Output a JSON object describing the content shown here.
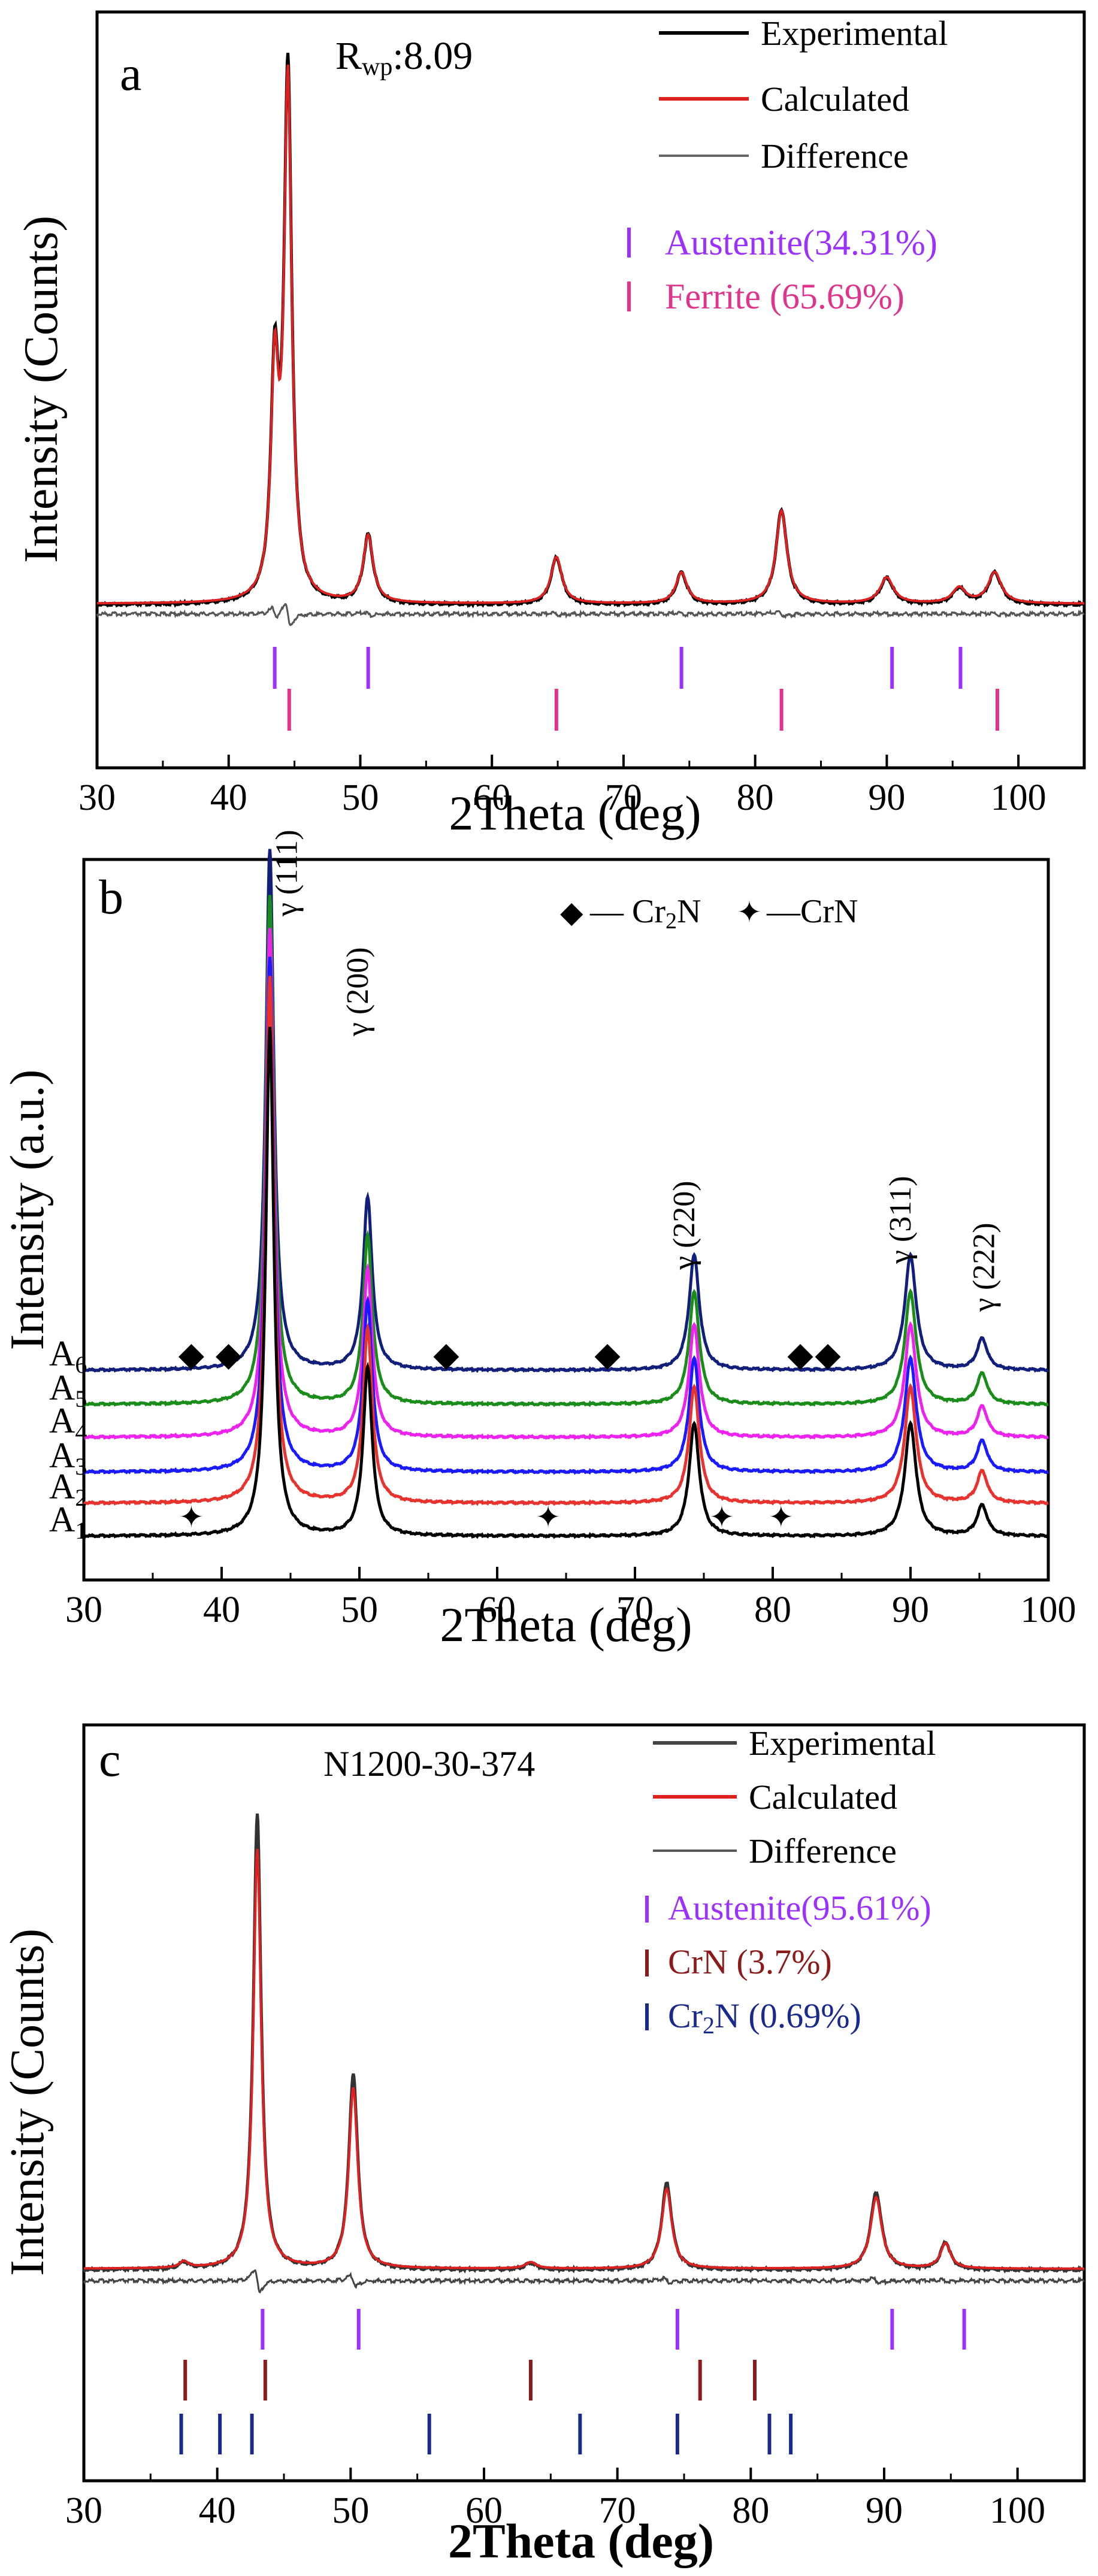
{
  "chart_data": [
    {
      "panel": "a",
      "type": "line",
      "annotation": "Rwp:8.09",
      "annotation_main": "R",
      "annotation_sub": "wp",
      "annotation_value": ":8.09",
      "xlabel": "2Theta (deg)",
      "ylabel": "Intensity (Counts)",
      "xlim": [
        30,
        105
      ],
      "xticks": [
        30,
        40,
        50,
        60,
        70,
        80,
        90,
        100
      ],
      "legend": [
        "Experimental",
        "Calculated",
        "Difference"
      ],
      "peaks": [
        {
          "x": 43.5,
          "h": 0.42,
          "w": 0.35
        },
        {
          "x": 44.5,
          "h": 1.0,
          "w": 0.35
        },
        {
          "x": 50.6,
          "h": 0.13,
          "w": 0.45
        },
        {
          "x": 64.9,
          "h": 0.09,
          "w": 0.5
        },
        {
          "x": 74.4,
          "h": 0.06,
          "w": 0.5
        },
        {
          "x": 82.0,
          "h": 0.18,
          "w": 0.5
        },
        {
          "x": 90.0,
          "h": 0.05,
          "w": 0.6
        },
        {
          "x": 95.5,
          "h": 0.03,
          "w": 0.6
        },
        {
          "x": 98.2,
          "h": 0.06,
          "w": 0.6
        }
      ],
      "phases": [
        {
          "label": "Austenite(34.31%)",
          "color": "#9b30ff",
          "positions": [
            43.5,
            50.6,
            74.4,
            90.4,
            95.6
          ]
        },
        {
          "label": "Ferrite (65.69%)",
          "color": "#e0338c",
          "positions": [
            44.6,
            64.9,
            82.0,
            98.4
          ]
        }
      ]
    },
    {
      "panel": "b",
      "type": "line",
      "xlabel": "2Theta (deg)",
      "ylabel": "Intensity (a.u.)",
      "xlim": [
        30,
        100
      ],
      "xticks": [
        30,
        40,
        50,
        60,
        70,
        80,
        90,
        100
      ],
      "legend": [
        {
          "symbol": "◆",
          "label_main": "— Cr",
          "label_sub": "2",
          "label_tail": "N"
        },
        {
          "symbol": "✦",
          "label_main": "—CrN",
          "label_sub": "",
          "label_tail": ""
        }
      ],
      "series": [
        {
          "name": "A1",
          "base": "A",
          "sub": "1",
          "color": "#000000"
        },
        {
          "name": "A2",
          "base": "A",
          "sub": "2",
          "color": "#e8322d"
        },
        {
          "name": "A3",
          "base": "A",
          "sub": "3",
          "color": "#1a1aff"
        },
        {
          "name": "A4",
          "base": "A",
          "sub": "4",
          "color": "#ee22ee"
        },
        {
          "name": "A5",
          "base": "A",
          "sub": "5",
          "color": "#1a8c1a"
        },
        {
          "name": "A6",
          "base": "A",
          "sub": "6",
          "color": "#121f7a"
        }
      ],
      "peaks": [
        {
          "x": 43.5,
          "h": 1.0,
          "w": 0.35
        },
        {
          "x": 50.6,
          "h": 0.33,
          "w": 0.4
        },
        {
          "x": 74.3,
          "h": 0.22,
          "w": 0.45
        },
        {
          "x": 90.0,
          "h": 0.22,
          "w": 0.5
        },
        {
          "x": 95.2,
          "h": 0.06,
          "w": 0.45
        }
      ],
      "peak_labels": [
        {
          "x": 43.5,
          "text": "γ (111)"
        },
        {
          "x": 50.6,
          "text": "γ (200)"
        },
        {
          "x": 74.3,
          "text": "γ (220)"
        },
        {
          "x": 90.0,
          "text": "γ (311)"
        },
        {
          "x": 95.2,
          "text": "γ (222)"
        }
      ],
      "cr2n_markers": [
        37.8,
        40.5,
        56.3,
        68.0,
        82.0,
        84.0
      ],
      "crn_markers": [
        37.8,
        63.7,
        76.3,
        80.6
      ]
    },
    {
      "panel": "c",
      "type": "line",
      "annotation": "N1200-30-374",
      "xlabel": "2Theta (deg)",
      "ylabel": "Intensity (Counts)",
      "xlim": [
        30,
        105
      ],
      "xticks": [
        30,
        40,
        50,
        60,
        70,
        80,
        90,
        100
      ],
      "legend": [
        "Experimental",
        "Calculated",
        "Difference"
      ],
      "peaks": [
        {
          "x": 37.5,
          "h": 0.015,
          "w": 0.4
        },
        {
          "x": 43.0,
          "h": 1.0,
          "w": 0.35
        },
        {
          "x": 50.2,
          "h": 0.43,
          "w": 0.4
        },
        {
          "x": 63.5,
          "h": 0.015,
          "w": 0.5
        },
        {
          "x": 73.7,
          "h": 0.19,
          "w": 0.45
        },
        {
          "x": 89.4,
          "h": 0.17,
          "w": 0.5
        },
        {
          "x": 94.6,
          "h": 0.06,
          "w": 0.45
        }
      ],
      "phases": [
        {
          "label_main": "Austenite(95.61%)",
          "label_sub": "",
          "label_tail": "",
          "color": "#9b30ff",
          "positions": [
            43.4,
            50.6,
            74.5,
            90.6,
            96.0
          ]
        },
        {
          "label_main": "CrN (3.7%)",
          "label_sub": "",
          "label_tail": "",
          "color": "#8b1a1a",
          "positions": [
            37.6,
            43.6,
            63.5,
            76.2,
            80.3
          ]
        },
        {
          "label_main": "Cr",
          "label_sub": "2",
          "label_tail": "N (0.69%)",
          "color": "#1a2a8c",
          "positions": [
            37.3,
            40.2,
            42.6,
            55.9,
            67.2,
            74.5,
            81.4,
            83.0
          ]
        }
      ]
    }
  ],
  "panel_letters": [
    "a",
    "b",
    "c"
  ]
}
